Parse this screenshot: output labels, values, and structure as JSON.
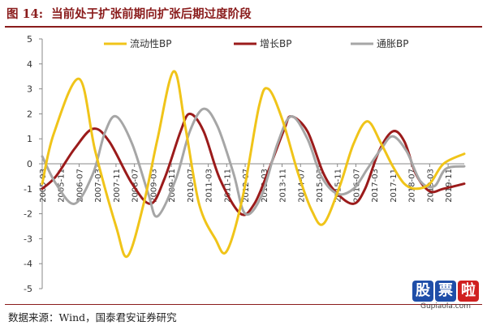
{
  "header": {
    "figure_label": "图 14:",
    "title": "当前处于扩张前期向扩张后期过度阶段"
  },
  "footer": {
    "source": "数据来源：Wind，国泰君安证券研究",
    "watermark_chars": [
      "股",
      "票",
      "啦"
    ],
    "watermark_url": "Gupiaola.com"
  },
  "colors": {
    "liquidity": "#f0c419",
    "growth": "#9b1b1b",
    "inflation": "#a6a6a6",
    "accent": "#8a1c1c"
  },
  "chart_data": {
    "type": "line",
    "title": "当前处于扩张前期向扩张后期过度阶段",
    "xlabel": "",
    "ylabel": "",
    "ylim": [
      -5,
      5
    ],
    "yticks": [
      5,
      4,
      3,
      2,
      1,
      0,
      -1,
      -2,
      -3,
      -4,
      -5
    ],
    "x_start": "2005-03",
    "x_end": "2020-06",
    "xticks": [
      "2005-03",
      "2005-11",
      "2006-07",
      "2007-03",
      "2007-11",
      "2008-07",
      "2009-03",
      "2009-11",
      "2010-07",
      "2011-03",
      "2011-11",
      "2012-07",
      "2013-03",
      "2013-11",
      "2014-07",
      "2015-03",
      "2015-11",
      "2016-07",
      "2017-03",
      "2017-11",
      "2018-07",
      "2019-03",
      "2019-11"
    ],
    "legend_position": "top",
    "grid": false,
    "series": [
      {
        "name": "流动性BP",
        "color": "#f0c419",
        "points": [
          [
            "2005-03",
            -0.8
          ],
          [
            "2005-08",
            1.2
          ],
          [
            "2006-07",
            3.4
          ],
          [
            "2007-02",
            0.5
          ],
          [
            "2007-11",
            -2.5
          ],
          [
            "2008-04",
            -3.7
          ],
          [
            "2008-11",
            -1.6
          ],
          [
            "2009-05",
            1.0
          ],
          [
            "2009-12",
            3.7
          ],
          [
            "2010-05",
            1.5
          ],
          [
            "2010-11",
            -1.6
          ],
          [
            "2011-06",
            -3.0
          ],
          [
            "2011-11",
            -3.5
          ],
          [
            "2012-06",
            -1.3
          ],
          [
            "2013-01",
            2.3
          ],
          [
            "2013-05",
            3.0
          ],
          [
            "2013-11",
            1.8
          ],
          [
            "2014-06",
            -0.4
          ],
          [
            "2014-12",
            -1.9
          ],
          [
            "2015-05",
            -2.4
          ],
          [
            "2015-12",
            -0.9
          ],
          [
            "2016-06",
            0.8
          ],
          [
            "2016-12",
            1.7
          ],
          [
            "2017-06",
            0.8
          ],
          [
            "2017-11",
            -0.1
          ],
          [
            "2018-04",
            -0.8
          ],
          [
            "2018-09",
            -1.0
          ],
          [
            "2019-03",
            -0.8
          ],
          [
            "2019-09",
            0.0
          ],
          [
            "2020-06",
            0.4
          ]
        ]
      },
      {
        "name": "增长BP",
        "color": "#9b1b1b",
        "points": [
          [
            "2005-03",
            -1.0
          ],
          [
            "2005-09",
            -0.5
          ],
          [
            "2006-05",
            0.6
          ],
          [
            "2007-01",
            1.4
          ],
          [
            "2007-08",
            0.9
          ],
          [
            "2008-06",
            -0.8
          ],
          [
            "2009-02",
            -1.6
          ],
          [
            "2009-08",
            -0.6
          ],
          [
            "2010-03",
            1.3
          ],
          [
            "2010-07",
            2.0
          ],
          [
            "2011-01",
            1.3
          ],
          [
            "2011-08",
            -0.6
          ],
          [
            "2012-05",
            -2.0
          ],
          [
            "2012-11",
            -1.6
          ],
          [
            "2013-05",
            -0.3
          ],
          [
            "2013-12",
            1.4
          ],
          [
            "2014-03",
            1.9
          ],
          [
            "2014-10",
            1.3
          ],
          [
            "2015-05",
            -0.4
          ],
          [
            "2015-11",
            -1.2
          ],
          [
            "2016-06",
            -1.6
          ],
          [
            "2016-11",
            -1.0
          ],
          [
            "2017-05",
            0.5
          ],
          [
            "2017-11",
            1.3
          ],
          [
            "2018-04",
            0.9
          ],
          [
            "2018-09",
            -0.4
          ],
          [
            "2019-03",
            -1.1
          ],
          [
            "2019-09",
            -1.0
          ],
          [
            "2020-06",
            -0.8
          ]
        ]
      },
      {
        "name": "通胀BP",
        "color": "#a6a6a6",
        "points": [
          [
            "2005-03",
            0.3
          ],
          [
            "2005-09",
            -0.8
          ],
          [
            "2006-05",
            -1.6
          ],
          [
            "2007-01",
            -0.4
          ],
          [
            "2007-06",
            1.2
          ],
          [
            "2007-11",
            1.9
          ],
          [
            "2008-06",
            0.8
          ],
          [
            "2009-01",
            -1.2
          ],
          [
            "2009-05",
            -2.1
          ],
          [
            "2010-01",
            -0.6
          ],
          [
            "2010-07",
            1.3
          ],
          [
            "2011-01",
            2.2
          ],
          [
            "2011-07",
            1.5
          ],
          [
            "2012-02",
            -0.4
          ],
          [
            "2012-07",
            -2.0
          ],
          [
            "2013-02",
            -1.3
          ],
          [
            "2013-09",
            0.8
          ],
          [
            "2014-03",
            1.9
          ],
          [
            "2014-10",
            1.0
          ],
          [
            "2015-04",
            -0.5
          ],
          [
            "2015-11",
            -1.2
          ],
          [
            "2016-06",
            -1.0
          ],
          [
            "2016-12",
            -0.2
          ],
          [
            "2017-06",
            0.6
          ],
          [
            "2017-11",
            1.1
          ],
          [
            "2018-05",
            0.5
          ],
          [
            "2018-11",
            -0.7
          ],
          [
            "2019-05",
            -0.9
          ],
          [
            "2019-10",
            -0.2
          ],
          [
            "2020-06",
            -0.1
          ]
        ]
      }
    ]
  }
}
